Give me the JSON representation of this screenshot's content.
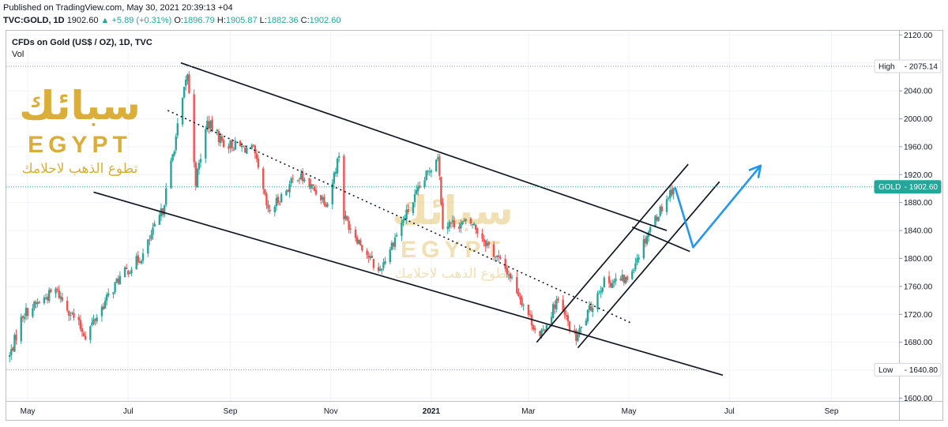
{
  "header": {
    "published": "Published on TradingView.com, May 30, 2021 20:39:13 +04",
    "symbol": "TVC:GOLD, 1D",
    "last": "1902.60",
    "change": "+5.89 (+0.31%)",
    "o_label": "O:",
    "o_value": "1896.79",
    "h_label": "H:",
    "h_value": "1905.87",
    "l_label": "L:",
    "l_value": "1882.36",
    "c_label": "C:",
    "c_value": "1902.60"
  },
  "legend": {
    "title": "CFDs on Gold (US$ / OZ), 1D, TVC",
    "vol": "Vol"
  },
  "watermark": {
    "arabic_logo": "سبائك",
    "brand": "EGYPT",
    "tagline": "تطوع الذهب لاحلامك"
  },
  "colors": {
    "up": "#26a69a",
    "down": "#ef5350",
    "channel": "#131722",
    "arrow": "#2196f3",
    "price_tag": "#26a69a",
    "watermark": "#d4a017"
  },
  "chart_data": {
    "type": "candlestick",
    "title": "CFDs on Gold (US$ / OZ), 1D, TVC",
    "y_axis_ticks": [
      1600,
      1640,
      1680,
      1720,
      1760,
      1800,
      1840,
      1880,
      1920,
      1960,
      2000,
      2040,
      2080,
      2120
    ],
    "y_axis_labels": [
      "1600.00",
      "1640.00",
      "1680.00",
      "1720.00",
      "1760.00",
      "1800.00",
      "1840.00",
      "1880.00",
      "1920.00",
      "1960.00",
      "2000.00",
      "2040.00",
      "2080.00",
      "2120.00"
    ],
    "ylim": [
      1596,
      2126
    ],
    "x_axis_labels": [
      "May",
      "Jul",
      "Sep",
      "Nov",
      "2021",
      "Mar",
      "May",
      "Jul",
      "Sep"
    ],
    "x_axis_dates": [
      "2020-05-01",
      "2020-07-01",
      "2020-09-01",
      "2020-11-01",
      "2021-01-01",
      "2021-03-01",
      "2021-05-01",
      "2021-07-01",
      "2021-09-01"
    ],
    "xlim": [
      "2020-04-18",
      "2021-10-12"
    ],
    "high": {
      "label": "High",
      "value": "2075.14"
    },
    "low": {
      "label": "Low",
      "value": "1640.80"
    },
    "current": {
      "label": "GOLD",
      "value": "1902.60"
    },
    "anchors": [
      {
        "date": "2020-04-20",
        "close": 1660
      },
      {
        "date": "2020-04-28",
        "close": 1720
      },
      {
        "date": "2020-05-18",
        "close": 1755
      },
      {
        "date": "2020-06-05",
        "close": 1690
      },
      {
        "date": "2020-06-25",
        "close": 1770
      },
      {
        "date": "2020-07-10",
        "close": 1805
      },
      {
        "date": "2020-07-22",
        "close": 1870
      },
      {
        "date": "2020-08-06",
        "close": 2065
      },
      {
        "date": "2020-08-11",
        "close": 1910
      },
      {
        "date": "2020-08-18",
        "close": 1995
      },
      {
        "date": "2020-08-28",
        "close": 1965
      },
      {
        "date": "2020-09-15",
        "close": 1955
      },
      {
        "date": "2020-09-24",
        "close": 1865
      },
      {
        "date": "2020-10-12",
        "close": 1920
      },
      {
        "date": "2020-10-30",
        "close": 1880
      },
      {
        "date": "2020-11-06",
        "close": 1950
      },
      {
        "date": "2020-11-09",
        "close": 1860
      },
      {
        "date": "2020-11-30",
        "close": 1780
      },
      {
        "date": "2020-12-15",
        "close": 1855
      },
      {
        "date": "2021-01-05",
        "close": 1950
      },
      {
        "date": "2021-01-08",
        "close": 1850
      },
      {
        "date": "2021-01-26",
        "close": 1850
      },
      {
        "date": "2021-02-18",
        "close": 1775
      },
      {
        "date": "2021-03-08",
        "close": 1685
      },
      {
        "date": "2021-03-18",
        "close": 1740
      },
      {
        "date": "2021-03-30",
        "close": 1685
      },
      {
        "date": "2021-04-15",
        "close": 1765
      },
      {
        "date": "2021-04-30",
        "close": 1770
      },
      {
        "date": "2021-05-14",
        "close": 1845
      },
      {
        "date": "2021-05-28",
        "close": 1902.6
      }
    ],
    "series": [
      {
        "name": "Upper descending channel line",
        "points": [
          {
            "date": "2020-08-02",
            "price": 2080
          },
          {
            "date": "2021-05-24",
            "price": 1840
          }
        ]
      },
      {
        "name": "Lower descending channel line",
        "points": [
          {
            "date": "2020-06-10",
            "price": 1895
          },
          {
            "date": "2021-06-27",
            "price": 1633
          }
        ]
      },
      {
        "name": "Dotted mid trendline",
        "points": [
          {
            "date": "2020-07-25",
            "price": 2012
          },
          {
            "date": "2021-05-02",
            "price": 1708
          }
        ]
      },
      {
        "name": "Rising channel upper",
        "points": [
          {
            "date": "2021-03-06",
            "price": 1680
          },
          {
            "date": "2021-06-06",
            "price": 1935
          }
        ]
      },
      {
        "name": "Rising channel lower",
        "points": [
          {
            "date": "2021-03-31",
            "price": 1672
          },
          {
            "date": "2021-06-25",
            "price": 1910
          }
        ]
      },
      {
        "name": "Support line",
        "points": [
          {
            "date": "2021-05-03",
            "price": 1845
          },
          {
            "date": "2021-06-07",
            "price": 1810
          }
        ]
      }
    ],
    "forecast_path": [
      {
        "date": "2021-05-29",
        "price": 1902
      },
      {
        "date": "2021-06-09",
        "price": 1816
      },
      {
        "date": "2021-07-20",
        "price": 1933
      }
    ],
    "grid": true
  }
}
